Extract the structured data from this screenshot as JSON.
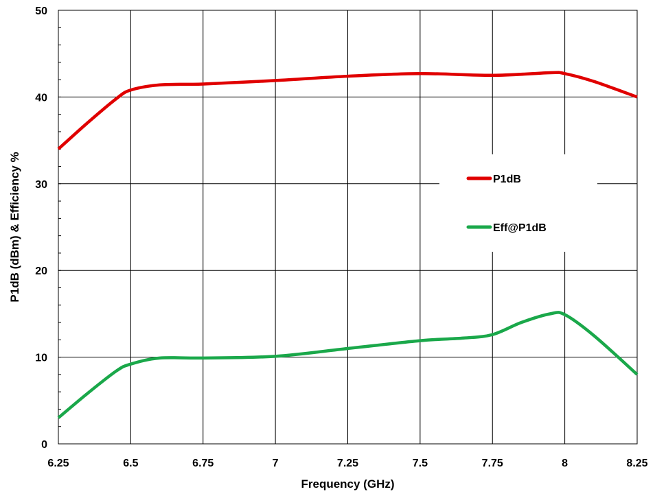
{
  "chart_data": {
    "type": "line",
    "xlabel": "Frequency  (GHz)",
    "ylabel": "P1dB (dBm) & Efficiency %",
    "xlim": [
      6.25,
      8.25
    ],
    "ylim": [
      0,
      50
    ],
    "x_ticks": [
      "6.25",
      "6.5",
      "6.75",
      "7",
      "7.25",
      "7.5",
      "7.75",
      "8",
      "8.25"
    ],
    "y_ticks": [
      "0",
      "10",
      "20",
      "30",
      "40",
      "50"
    ],
    "grid": true,
    "legend_position": "right-middle",
    "series": [
      {
        "name": "P1dB",
        "color": "#e00000",
        "points": [
          [
            6.25,
            34.0
          ],
          [
            6.35,
            37.0
          ],
          [
            6.45,
            39.8
          ],
          [
            6.5,
            40.8
          ],
          [
            6.6,
            41.4
          ],
          [
            6.75,
            41.5
          ],
          [
            7.0,
            41.9
          ],
          [
            7.25,
            42.4
          ],
          [
            7.5,
            42.7
          ],
          [
            7.75,
            42.5
          ],
          [
            7.95,
            42.8
          ],
          [
            8.0,
            42.7
          ],
          [
            8.1,
            41.8
          ],
          [
            8.25,
            40.0
          ]
        ]
      },
      {
        "name": "Eff@P1dB",
        "color": "#1aa84a",
        "points": [
          [
            6.25,
            3.0
          ],
          [
            6.35,
            5.8
          ],
          [
            6.45,
            8.4
          ],
          [
            6.5,
            9.2
          ],
          [
            6.6,
            9.9
          ],
          [
            6.75,
            9.9
          ],
          [
            7.0,
            10.1
          ],
          [
            7.25,
            11.0
          ],
          [
            7.5,
            11.9
          ],
          [
            7.65,
            12.2
          ],
          [
            7.75,
            12.6
          ],
          [
            7.85,
            14.0
          ],
          [
            7.95,
            15.0
          ],
          [
            8.0,
            14.9
          ],
          [
            8.1,
            12.5
          ],
          [
            8.25,
            8.0
          ]
        ]
      }
    ]
  }
}
